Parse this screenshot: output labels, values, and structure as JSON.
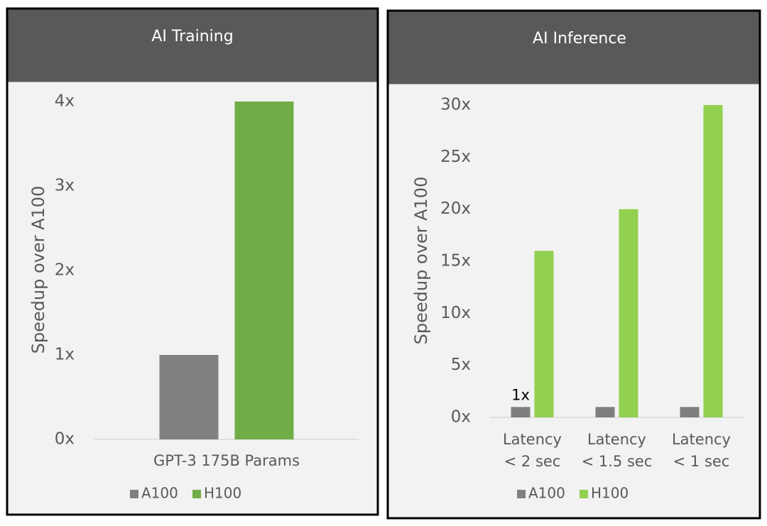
{
  "chart_data": [
    {
      "type": "bar",
      "title": "AI Training",
      "y_label": "Speedup over A100",
      "categories": [
        "GPT-3 175B Params"
      ],
      "series": [
        {
          "name": "A100",
          "color": "#808080",
          "values": [
            1
          ]
        },
        {
          "name": "H100",
          "color": "#70ad47",
          "values": [
            4
          ]
        }
      ],
      "ylim": [
        0,
        4
      ],
      "yticks": [
        {
          "value": 0,
          "label": "0x"
        },
        {
          "value": 1,
          "label": "1x"
        },
        {
          "value": 2,
          "label": "2x"
        },
        {
          "value": 3,
          "label": "3x"
        },
        {
          "value": 4,
          "label": "4x"
        }
      ],
      "legend": "bottom"
    },
    {
      "type": "bar",
      "title": "AI Inference",
      "y_label": "Speedup over A100",
      "categories": [
        "Latency < 2 sec",
        "Latency < 1.5 sec",
        "Latency < 1 sec"
      ],
      "series": [
        {
          "name": "A100",
          "color": "#7f7f7f",
          "values": [
            1,
            1,
            1
          ],
          "value_labels": [
            "1x",
            null,
            null
          ]
        },
        {
          "name": "H100",
          "color": "#92d050",
          "values": [
            16,
            20,
            30
          ]
        }
      ],
      "ylim": [
        0,
        30
      ],
      "yticks": [
        {
          "value": 0,
          "label": "0x"
        },
        {
          "value": 5,
          "label": "5x"
        },
        {
          "value": 10,
          "label": "10x"
        },
        {
          "value": 15,
          "label": "15x"
        },
        {
          "value": 20,
          "label": "20x"
        },
        {
          "value": 25,
          "label": "25x"
        },
        {
          "value": 30,
          "label": "30x"
        }
      ],
      "legend": "bottom"
    }
  ]
}
